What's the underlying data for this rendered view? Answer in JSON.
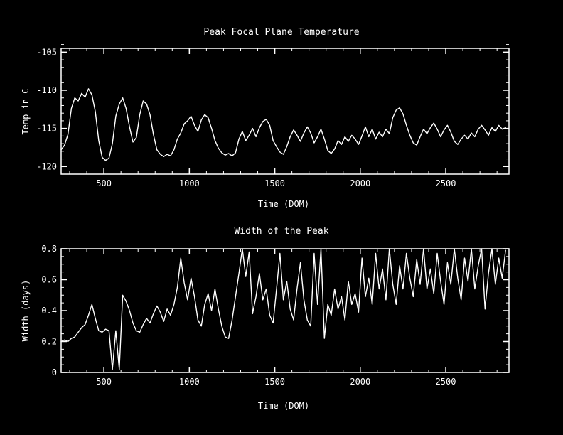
{
  "colors": {
    "background": "#000000",
    "foreground": "#ffffff"
  },
  "chart_data": [
    {
      "type": "line",
      "name": "peak-focal-plane-temperature",
      "title": "Peak Focal Plane Temperature",
      "xlabel": "Time (DOM)",
      "ylabel": "Temp in C",
      "xlim": [
        250,
        2870
      ],
      "ylim": [
        -121,
        -104.5
      ],
      "xticks": [
        500,
        1000,
        1500,
        2000,
        2500
      ],
      "xtick_labels": [
        "500",
        "1000",
        "1500",
        "2000",
        "2500"
      ],
      "yticks": [
        -120,
        -115,
        -110,
        -105
      ],
      "ytick_labels": [
        "-120",
        "-115",
        "-110",
        "-105"
      ],
      "x_minor_step": 100,
      "y_minor_step": 1,
      "grid": false,
      "legend": null,
      "line_color": "#ffffff",
      "x": [
        250,
        270,
        290,
        310,
        330,
        350,
        370,
        390,
        410,
        430,
        450,
        470,
        490,
        510,
        530,
        550,
        570,
        590,
        610,
        630,
        650,
        670,
        690,
        710,
        730,
        750,
        770,
        790,
        810,
        830,
        850,
        870,
        890,
        910,
        930,
        950,
        970,
        990,
        1010,
        1030,
        1050,
        1070,
        1090,
        1110,
        1130,
        1150,
        1170,
        1190,
        1210,
        1230,
        1250,
        1270,
        1290,
        1310,
        1330,
        1350,
        1370,
        1390,
        1410,
        1430,
        1450,
        1470,
        1490,
        1510,
        1530,
        1550,
        1570,
        1590,
        1610,
        1630,
        1650,
        1670,
        1690,
        1710,
        1730,
        1750,
        1770,
        1790,
        1810,
        1830,
        1850,
        1870,
        1890,
        1910,
        1930,
        1950,
        1970,
        1990,
        2010,
        2030,
        2050,
        2070,
        2090,
        2110,
        2130,
        2150,
        2170,
        2190,
        2210,
        2230,
        2250,
        2270,
        2290,
        2310,
        2330,
        2350,
        2370,
        2390,
        2410,
        2430,
        2450,
        2470,
        2490,
        2510,
        2530,
        2550,
        2570,
        2590,
        2610,
        2630,
        2650,
        2670,
        2690,
        2710,
        2730,
        2750,
        2770,
        2790,
        2810,
        2830,
        2850
      ],
      "y": [
        -117.8,
        -117.2,
        -115.8,
        -112.4,
        -111.0,
        -111.4,
        -110.4,
        -110.9,
        -109.8,
        -110.6,
        -112.8,
        -116.6,
        -118.8,
        -119.2,
        -118.9,
        -117.0,
        -113.4,
        -111.8,
        -111.0,
        -112.4,
        -114.8,
        -116.8,
        -116.2,
        -113.2,
        -111.4,
        -111.8,
        -113.2,
        -115.8,
        -117.8,
        -118.4,
        -118.7,
        -118.4,
        -118.6,
        -117.8,
        -116.4,
        -115.6,
        -114.4,
        -114.0,
        -113.4,
        -114.6,
        -115.4,
        -113.9,
        -113.2,
        -113.6,
        -115.0,
        -116.6,
        -117.6,
        -118.2,
        -118.5,
        -118.3,
        -118.6,
        -118.2,
        -116.4,
        -115.4,
        -116.6,
        -115.9,
        -115.0,
        -116.1,
        -114.9,
        -114.1,
        -113.8,
        -114.6,
        -116.6,
        -117.4,
        -118.1,
        -118.4,
        -117.4,
        -116.1,
        -115.2,
        -115.9,
        -116.7,
        -115.6,
        -114.8,
        -115.6,
        -116.9,
        -116.1,
        -115.1,
        -116.4,
        -117.9,
        -118.3,
        -117.7,
        -116.6,
        -117.1,
        -116.1,
        -116.7,
        -115.9,
        -116.4,
        -117.1,
        -116.0,
        -114.8,
        -116.1,
        -115.1,
        -116.4,
        -115.5,
        -116.1,
        -115.1,
        -115.7,
        -113.6,
        -112.6,
        -112.3,
        -113.1,
        -114.6,
        -115.9,
        -116.9,
        -117.2,
        -116.1,
        -115.1,
        -115.7,
        -114.9,
        -114.3,
        -115.1,
        -116.1,
        -115.2,
        -114.6,
        -115.5,
        -116.7,
        -117.1,
        -116.4,
        -115.9,
        -116.4,
        -115.6,
        -116.1,
        -115.1,
        -114.6,
        -115.2,
        -115.9,
        -114.9,
        -115.4,
        -114.6,
        -115.1,
        -114.9
      ]
    },
    {
      "type": "line",
      "name": "width-of-the-peak",
      "title": "Width of the Peak",
      "xlabel": "Time (DOM)",
      "ylabel": "Width (days)",
      "xlim": [
        250,
        2870
      ],
      "ylim": [
        0,
        0.8
      ],
      "xticks": [
        500,
        1000,
        1500,
        2000,
        2500
      ],
      "xtick_labels": [
        "500",
        "1000",
        "1500",
        "2000",
        "2500"
      ],
      "yticks": [
        0,
        0.2,
        0.4,
        0.6,
        0.8
      ],
      "ytick_labels": [
        "0",
        "0.2",
        "0.4",
        "0.6",
        "0.8"
      ],
      "x_minor_step": 100,
      "y_minor_step": 0.05,
      "grid": false,
      "legend": null,
      "line_color": "#ffffff",
      "x": [
        250,
        270,
        290,
        310,
        330,
        350,
        370,
        390,
        410,
        430,
        450,
        470,
        490,
        510,
        530,
        550,
        570,
        590,
        610,
        630,
        650,
        670,
        690,
        710,
        730,
        750,
        770,
        790,
        810,
        830,
        850,
        870,
        890,
        910,
        930,
        950,
        970,
        990,
        1010,
        1030,
        1050,
        1070,
        1090,
        1110,
        1130,
        1150,
        1170,
        1190,
        1210,
        1230,
        1250,
        1270,
        1290,
        1310,
        1330,
        1350,
        1370,
        1390,
        1410,
        1430,
        1450,
        1470,
        1490,
        1510,
        1530,
        1550,
        1570,
        1590,
        1610,
        1630,
        1650,
        1670,
        1690,
        1710,
        1730,
        1750,
        1770,
        1790,
        1810,
        1830,
        1850,
        1870,
        1890,
        1910,
        1930,
        1950,
        1970,
        1990,
        2010,
        2030,
        2050,
        2070,
        2090,
        2110,
        2130,
        2150,
        2170,
        2190,
        2210,
        2230,
        2250,
        2270,
        2290,
        2310,
        2330,
        2350,
        2370,
        2390,
        2410,
        2430,
        2450,
        2470,
        2490,
        2510,
        2530,
        2550,
        2570,
        2590,
        2610,
        2630,
        2650,
        2670,
        2690,
        2710,
        2730,
        2750,
        2770,
        2790,
        2810,
        2830,
        2850
      ],
      "y": [
        0.2,
        0.21,
        0.2,
        0.22,
        0.23,
        0.26,
        0.29,
        0.31,
        0.37,
        0.44,
        0.35,
        0.27,
        0.26,
        0.28,
        0.27,
        0.02,
        0.27,
        0.02,
        0.5,
        0.46,
        0.4,
        0.32,
        0.27,
        0.26,
        0.31,
        0.35,
        0.32,
        0.38,
        0.43,
        0.39,
        0.33,
        0.41,
        0.37,
        0.44,
        0.55,
        0.74,
        0.58,
        0.47,
        0.61,
        0.49,
        0.34,
        0.3,
        0.44,
        0.51,
        0.4,
        0.54,
        0.41,
        0.3,
        0.23,
        0.22,
        0.34,
        0.49,
        0.64,
        0.8,
        0.62,
        0.78,
        0.38,
        0.49,
        0.64,
        0.47,
        0.54,
        0.37,
        0.32,
        0.54,
        0.77,
        0.47,
        0.59,
        0.41,
        0.34,
        0.54,
        0.71,
        0.47,
        0.34,
        0.3,
        0.77,
        0.44,
        0.8,
        0.22,
        0.44,
        0.37,
        0.54,
        0.41,
        0.49,
        0.34,
        0.59,
        0.44,
        0.51,
        0.39,
        0.74,
        0.49,
        0.61,
        0.44,
        0.77,
        0.54,
        0.67,
        0.47,
        0.8,
        0.57,
        0.44,
        0.69,
        0.54,
        0.77,
        0.61,
        0.49,
        0.73,
        0.57,
        0.8,
        0.54,
        0.67,
        0.51,
        0.77,
        0.59,
        0.44,
        0.71,
        0.57,
        0.8,
        0.61,
        0.47,
        0.74,
        0.59,
        0.8,
        0.54,
        0.69,
        0.8,
        0.41,
        0.64,
        0.8,
        0.57,
        0.74,
        0.61,
        0.79
      ]
    }
  ]
}
